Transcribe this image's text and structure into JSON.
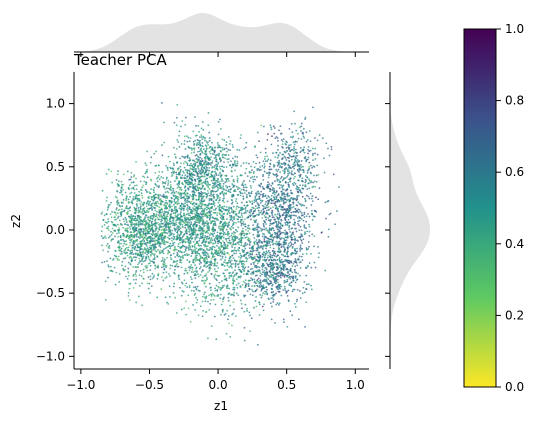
{
  "chart_data": {
    "type": "scatter",
    "title": "Teacher PCA",
    "xlabel": "z1",
    "ylabel": "z2",
    "xlim": [
      -1.05,
      1.1
    ],
    "ylim": [
      -1.1,
      1.25
    ],
    "xticks": [
      "−1.0",
      "−0.5",
      "0.0",
      "0.5",
      "1.0"
    ],
    "xtick_values": [
      -1.0,
      -0.5,
      0.0,
      0.5,
      1.0
    ],
    "yticks": [
      "−1.0",
      "−0.5",
      "0.0",
      "0.5",
      "1.0"
    ],
    "ytick_values": [
      -1.0,
      -0.5,
      0.0,
      0.5,
      1.0
    ],
    "grid": false,
    "marginals": "kde",
    "marginal_color": "#e3e3e3",
    "point_clusters": [
      {
        "cx": -0.55,
        "cy": 0.0,
        "sx": 0.16,
        "sy": 0.2,
        "weight": 0.22,
        "value_mean": 0.45
      },
      {
        "cx": -0.2,
        "cy": 0.1,
        "sx": 0.18,
        "sy": 0.25,
        "weight": 0.22,
        "value_mean": 0.48
      },
      {
        "cx": 0.05,
        "cy": -0.1,
        "sx": 0.16,
        "sy": 0.27,
        "weight": 0.16,
        "value_mean": 0.47
      },
      {
        "cx": -0.1,
        "cy": 0.5,
        "sx": 0.12,
        "sy": 0.15,
        "weight": 0.1,
        "value_mean": 0.52
      },
      {
        "cx": 0.45,
        "cy": 0.15,
        "sx": 0.14,
        "sy": 0.25,
        "weight": 0.16,
        "value_mean": 0.62
      },
      {
        "cx": 0.4,
        "cy": -0.3,
        "sx": 0.12,
        "sy": 0.15,
        "weight": 0.1,
        "value_mean": 0.6
      },
      {
        "cx": 0.55,
        "cy": 0.55,
        "sx": 0.1,
        "sy": 0.15,
        "weight": 0.04,
        "value_mean": 0.58
      }
    ],
    "colorbar": {
      "colormap": "viridis_r",
      "range": [
        0.0,
        1.0
      ],
      "ticks": [
        "0.0",
        "0.2",
        "0.4",
        "0.6",
        "0.8",
        "1.0"
      ],
      "tick_values": [
        0.0,
        0.2,
        0.4,
        0.6,
        0.8,
        1.0
      ],
      "stops": [
        "#fde725",
        "#5ec962",
        "#21918c",
        "#3b528b",
        "#440154"
      ]
    }
  }
}
